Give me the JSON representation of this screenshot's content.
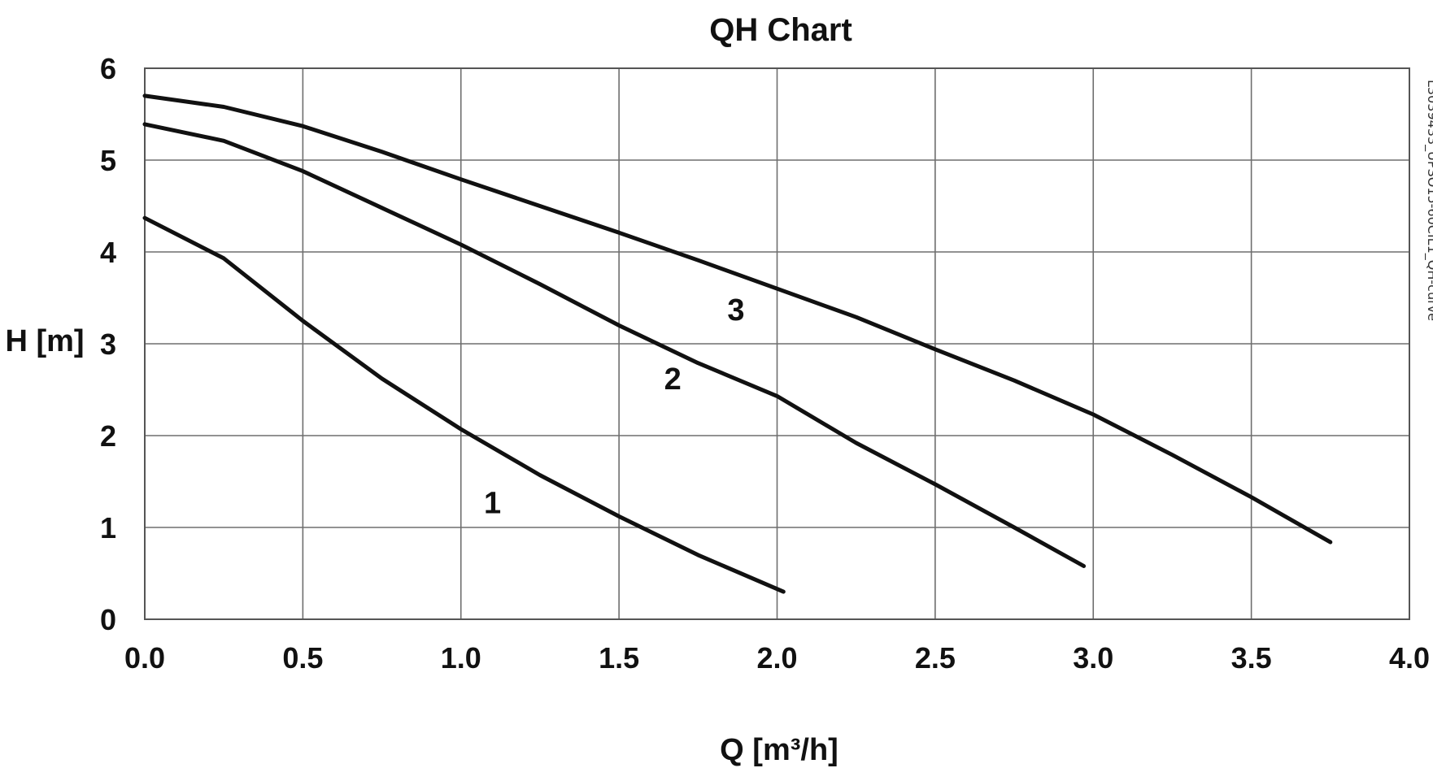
{
  "chart_data": {
    "type": "line",
    "title": "QH Chart",
    "xlabel": "Q [m³/h]",
    "ylabel": "H [m]",
    "xlim": [
      0,
      4
    ],
    "ylim": [
      0,
      6
    ],
    "x_ticks": [
      "0.0",
      "0.5",
      "1.0",
      "1.5",
      "2.0",
      "2.5",
      "3.0",
      "3.5",
      "4.0"
    ],
    "y_ticks": [
      "0",
      "1",
      "2",
      "3",
      "4",
      "5",
      "6"
    ],
    "grid": true,
    "side_note": "L3039433_UPSO15-60CIL1_QH-curve",
    "series": [
      {
        "name": "1",
        "label_at": [
          1.1,
          1.28
        ],
        "points": [
          [
            0,
            4.37
          ],
          [
            0.25,
            3.93
          ],
          [
            0.5,
            3.25
          ],
          [
            0.75,
            2.62
          ],
          [
            1.0,
            2.07
          ],
          [
            1.25,
            1.57
          ],
          [
            1.5,
            1.12
          ],
          [
            1.75,
            0.7
          ],
          [
            2.02,
            0.3
          ]
        ]
      },
      {
        "name": "2",
        "label_at": [
          1.67,
          2.63
        ],
        "points": [
          [
            0,
            5.39
          ],
          [
            0.25,
            5.21
          ],
          [
            0.5,
            4.88
          ],
          [
            0.75,
            4.48
          ],
          [
            1.0,
            4.08
          ],
          [
            1.25,
            3.65
          ],
          [
            1.5,
            3.2
          ],
          [
            1.75,
            2.79
          ],
          [
            2.0,
            2.43
          ],
          [
            2.25,
            1.92
          ],
          [
            2.5,
            1.47
          ],
          [
            2.75,
            1.0
          ],
          [
            2.97,
            0.58
          ]
        ]
      },
      {
        "name": "3",
        "label_at": [
          1.87,
          3.38
        ],
        "points": [
          [
            0,
            5.7
          ],
          [
            0.25,
            5.58
          ],
          [
            0.5,
            5.37
          ],
          [
            0.75,
            5.09
          ],
          [
            1.0,
            4.79
          ],
          [
            1.25,
            4.5
          ],
          [
            1.5,
            4.21
          ],
          [
            1.75,
            3.91
          ],
          [
            2.0,
            3.6
          ],
          [
            2.25,
            3.29
          ],
          [
            2.5,
            2.94
          ],
          [
            2.75,
            2.6
          ],
          [
            3.0,
            2.23
          ],
          [
            3.25,
            1.79
          ],
          [
            3.5,
            1.33
          ],
          [
            3.75,
            0.84
          ]
        ]
      }
    ]
  }
}
